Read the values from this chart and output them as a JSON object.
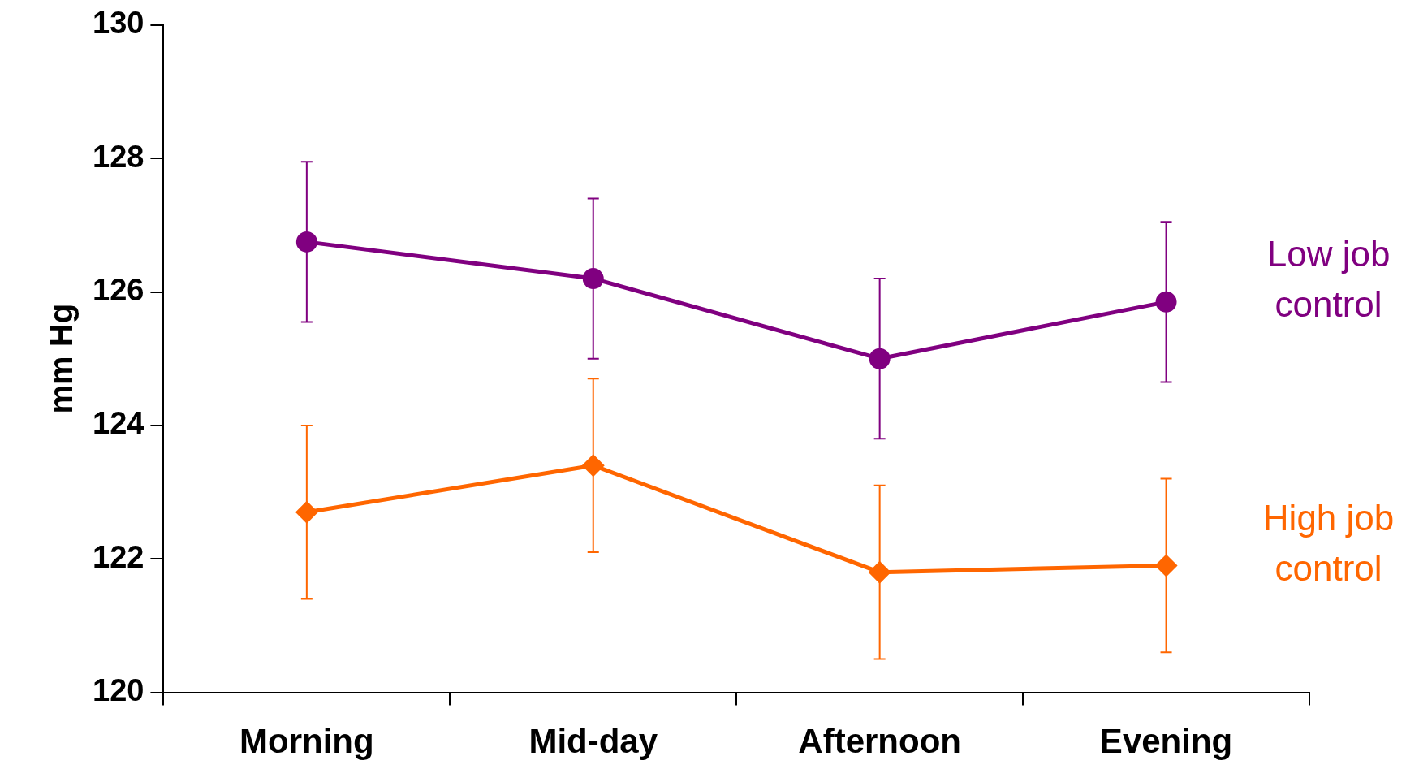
{
  "chart_data": {
    "type": "line",
    "ylabel": "mm Hg",
    "categories": [
      "Morning",
      "Mid-day",
      "Afternoon",
      "Evening"
    ],
    "ylim": [
      120,
      130
    ],
    "yticks": [
      120,
      122,
      124,
      126,
      128,
      130
    ],
    "grid": false,
    "legend": false,
    "series": [
      {
        "name": "Low job control",
        "color": "#800080",
        "marker": "circle",
        "values": [
          126.75,
          126.2,
          125.0,
          125.85
        ],
        "errors": [
          1.2,
          1.2,
          1.2,
          1.2
        ]
      },
      {
        "name": "High job control",
        "color": "#ff6600",
        "marker": "diamond",
        "values": [
          122.7,
          123.4,
          121.8,
          121.9
        ],
        "errors": [
          1.3,
          1.3,
          1.3,
          1.3
        ]
      }
    ]
  }
}
